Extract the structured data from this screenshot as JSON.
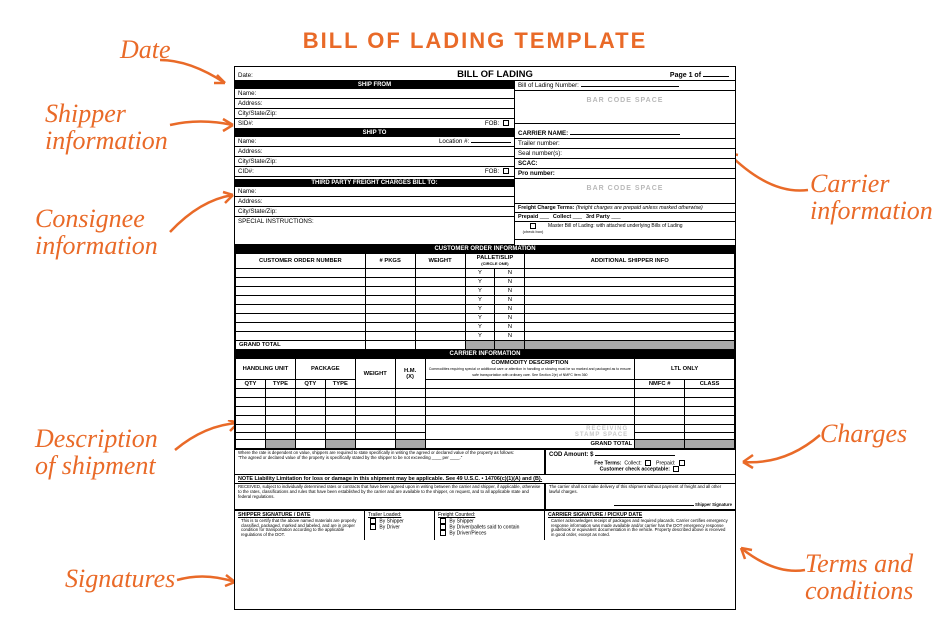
{
  "colors": {
    "accent": "#e96a28",
    "text": "#000000",
    "muted": "#b9b9b9",
    "grey_stub": "#a8a8a8"
  },
  "page_title": "BILL OF LADING TEMPLATE",
  "annotations": {
    "date": "Date",
    "shipper": "Shipper\ninformation",
    "consignee": "Consignee\ninformation",
    "description": "Description\nof shipment",
    "signatures": "Signatures",
    "carrier": "Carrier\ninformation",
    "charges": "Charges",
    "terms": "Terms and\nconditions"
  },
  "form": {
    "header": {
      "date_label": "Date:",
      "title": "BILL OF LADING",
      "pageof_prefix": "Page 1 of"
    },
    "ship_from": {
      "band": "SHIP FROM",
      "fields": {
        "name": "Name:",
        "address": "Address:",
        "csz": "City/State/Zip:",
        "sid": "SID#:",
        "fob": "FOB:"
      }
    },
    "right_top": {
      "bol_num": "Bill of Lading Number:",
      "barcode": "BAR CODE SPACE"
    },
    "ship_to": {
      "band": "SHIP TO",
      "fields": {
        "name": "Name:",
        "location": "Location #:",
        "address": "Address:",
        "csz": "City/State/Zip:",
        "cid": "CID#:",
        "fob": "FOB:"
      }
    },
    "carrier_block": {
      "carrier_name": "CARRIER NAME:",
      "trailer": "Trailer number:",
      "seal": "Seal number(s):",
      "scac": "SCAC:",
      "pro": "Pro number:",
      "barcode": "BAR CODE SPACE"
    },
    "third_party": {
      "band": "THIRD PARTY FREIGHT CHARGES BILL TO:",
      "name": "Name:",
      "address": "Address:",
      "csz": "City/State/Zip:"
    },
    "freight_terms": {
      "heading": "Freight Charge Terms:",
      "note": "(freight charges are prepaid unless marked otherwise)",
      "prepaid": "Prepaid",
      "collect": "Collect",
      "thirdparty": "3rd Party",
      "master": "Master Bill of Lading: with attached underlying Bills of Lading",
      "check_box": "(check box)"
    },
    "special": "SPECIAL INSTRUCTIONS:",
    "cust_order": {
      "band": "CUSTOMER ORDER INFORMATION",
      "cols": {
        "con": "CUSTOMER ORDER NUMBER",
        "pkgs": "# PKGS",
        "weight": "WEIGHT",
        "pallet": "PALLET/SLIP",
        "circle": "(CIRCLE ONE)",
        "add": "ADDITIONAL SHIPPER INFO"
      },
      "rows": 8,
      "y": "Y",
      "n": "N",
      "grand_total": "GRAND TOTAL"
    },
    "carrier_info": {
      "band": "CARRIER INFORMATION",
      "handling_unit": "HANDLING UNIT",
      "package": "PACKAGE",
      "cols": {
        "qty": "QTY",
        "type": "TYPE",
        "weight": "WEIGHT",
        "hm": "H.M.\n(X)",
        "commodity": "COMMODITY DESCRIPTION",
        "commodity_sub": "Commodities requiring special or additional care or attention in handling or stowing must be so marked and packaged as to ensure safe transportation with ordinary care. See Section 2(e) of NMFC Item 360",
        "ltl": "LTL ONLY",
        "nmfc": "NMFC #",
        "class": "CLASS"
      },
      "rows": 6,
      "receiving": "RECEIVING",
      "stamp_space": "STAMP SPACE",
      "grand_total": "GRAND TOTAL"
    },
    "cod_block": {
      "rate_note": "Where the rate is dependent on value, shippers are required to state specifically in writing the agreed or declared value of the property as follows:\n\"The agreed or declared value of the property is specifically stated by the shipper to be not exceeding ____ per ____.\"",
      "cod_amount": "COD Amount: $",
      "fee_terms": "Fee Terms:",
      "collect": "Collect:",
      "prepaid": "Prepaid:",
      "cust_check": "Customer check acceptable:"
    },
    "note_liability": "NOTE  Liability Limitation for loss or damage in this shipment may be applicable. See 49 U.S.C. • 14706(c)(1)(A) and (B).",
    "received_note": "RECEIVED, subject to individually determined rates or contracts that have been agreed upon in writing between the carrier and shipper, if applicable, otherwise to the rates, classifications and rules that have been established by the carrier and are available to the shipper, on request, and to all applicable state and federal regulations.",
    "carrier_no_deliver": "The carrier shall not make delivery of this shipment without payment of freight and all other lawful charges.",
    "shipper_sig_line": "Shipper Signature",
    "bottom": {
      "shipper_sig": "SHIPPER SIGNATURE / DATE",
      "shipper_sig_note": "This is to certify that the above named materials are properly classified, packaged, marked and labeled, and are in proper condition for transportation according to the applicable regulations of the DOT.",
      "trailer_loaded": "Trailer Loaded:",
      "freight_counted": "Freight Counted:",
      "by_shipper": "By Shipper",
      "by_driver": "By Driver",
      "by_driver_pallets": "By Driver/pallets said to contain",
      "by_driver_pieces": "By Driver/Pieces",
      "carrier_sig": "CARRIER SIGNATURE / PICKUP DATE",
      "carrier_sig_note": "Carrier acknowledges receipt of packages and required placards. Carrier certifies emergency response information was made available and/or carrier has the DOT emergency response guidebook or equivalent documentation in the vehicle. Property described above is received in good order, except as noted."
    }
  }
}
